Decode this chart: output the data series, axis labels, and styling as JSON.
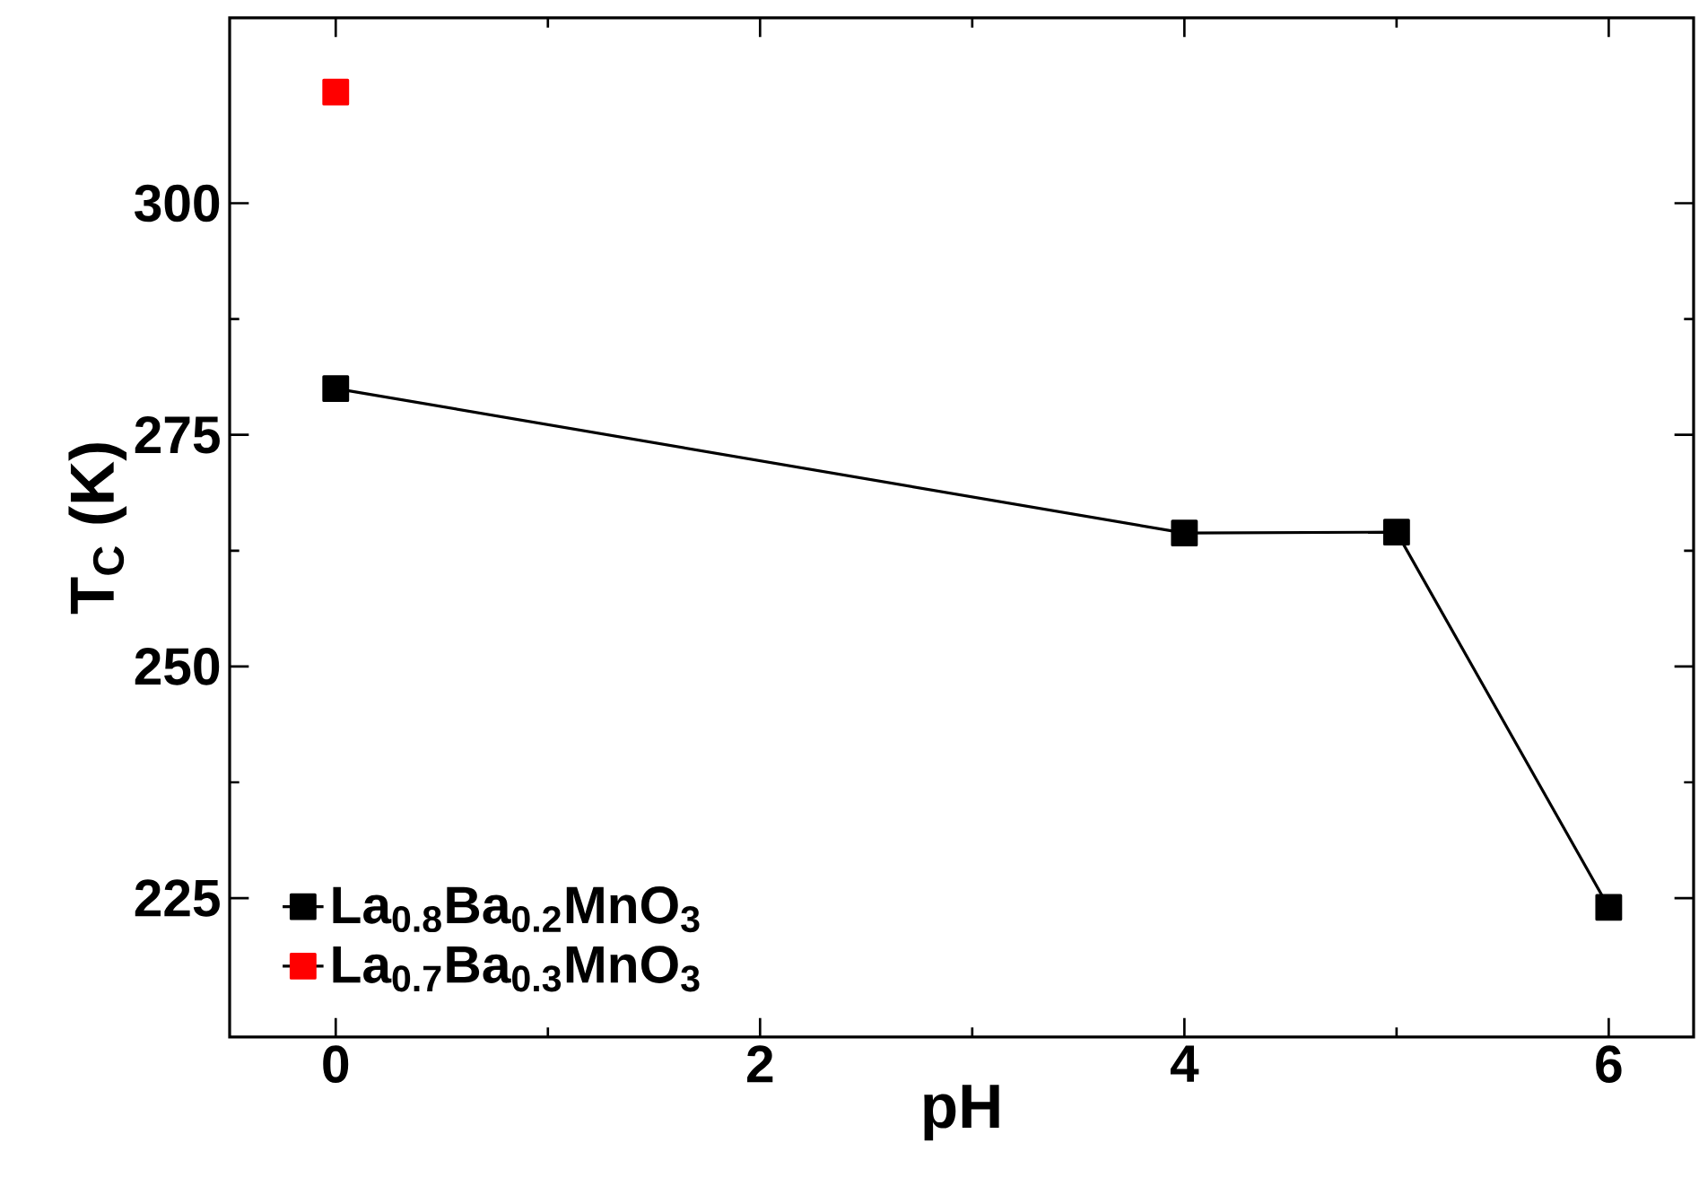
{
  "chart_data": {
    "type": "line",
    "xlabel": "pH",
    "ylabel": "T$_{C}$ (K)",
    "series": [
      {
        "name": "La$_{0.8}$Ba$_{0.2}$MnO$_{3}$",
        "color": "#000000",
        "x": [
          0,
          4,
          5,
          6
        ],
        "values": [
          280,
          264.4,
          264.5,
          224
        ]
      },
      {
        "name": "La$_{0.7}$Ba$_{0.3}$MnO$_{3}$",
        "color": "#ff0000",
        "x": [
          0
        ],
        "values": [
          312
        ]
      }
    ],
    "xlim": [
      -0.5,
      6.4
    ],
    "ylim": [
      210,
      320
    ],
    "xticks": [
      0,
      2,
      4,
      6
    ],
    "yticks": [
      225,
      250,
      275,
      300
    ],
    "grid": false,
    "legend": "bottom left",
    "marker": "square",
    "line_style": "solid"
  }
}
